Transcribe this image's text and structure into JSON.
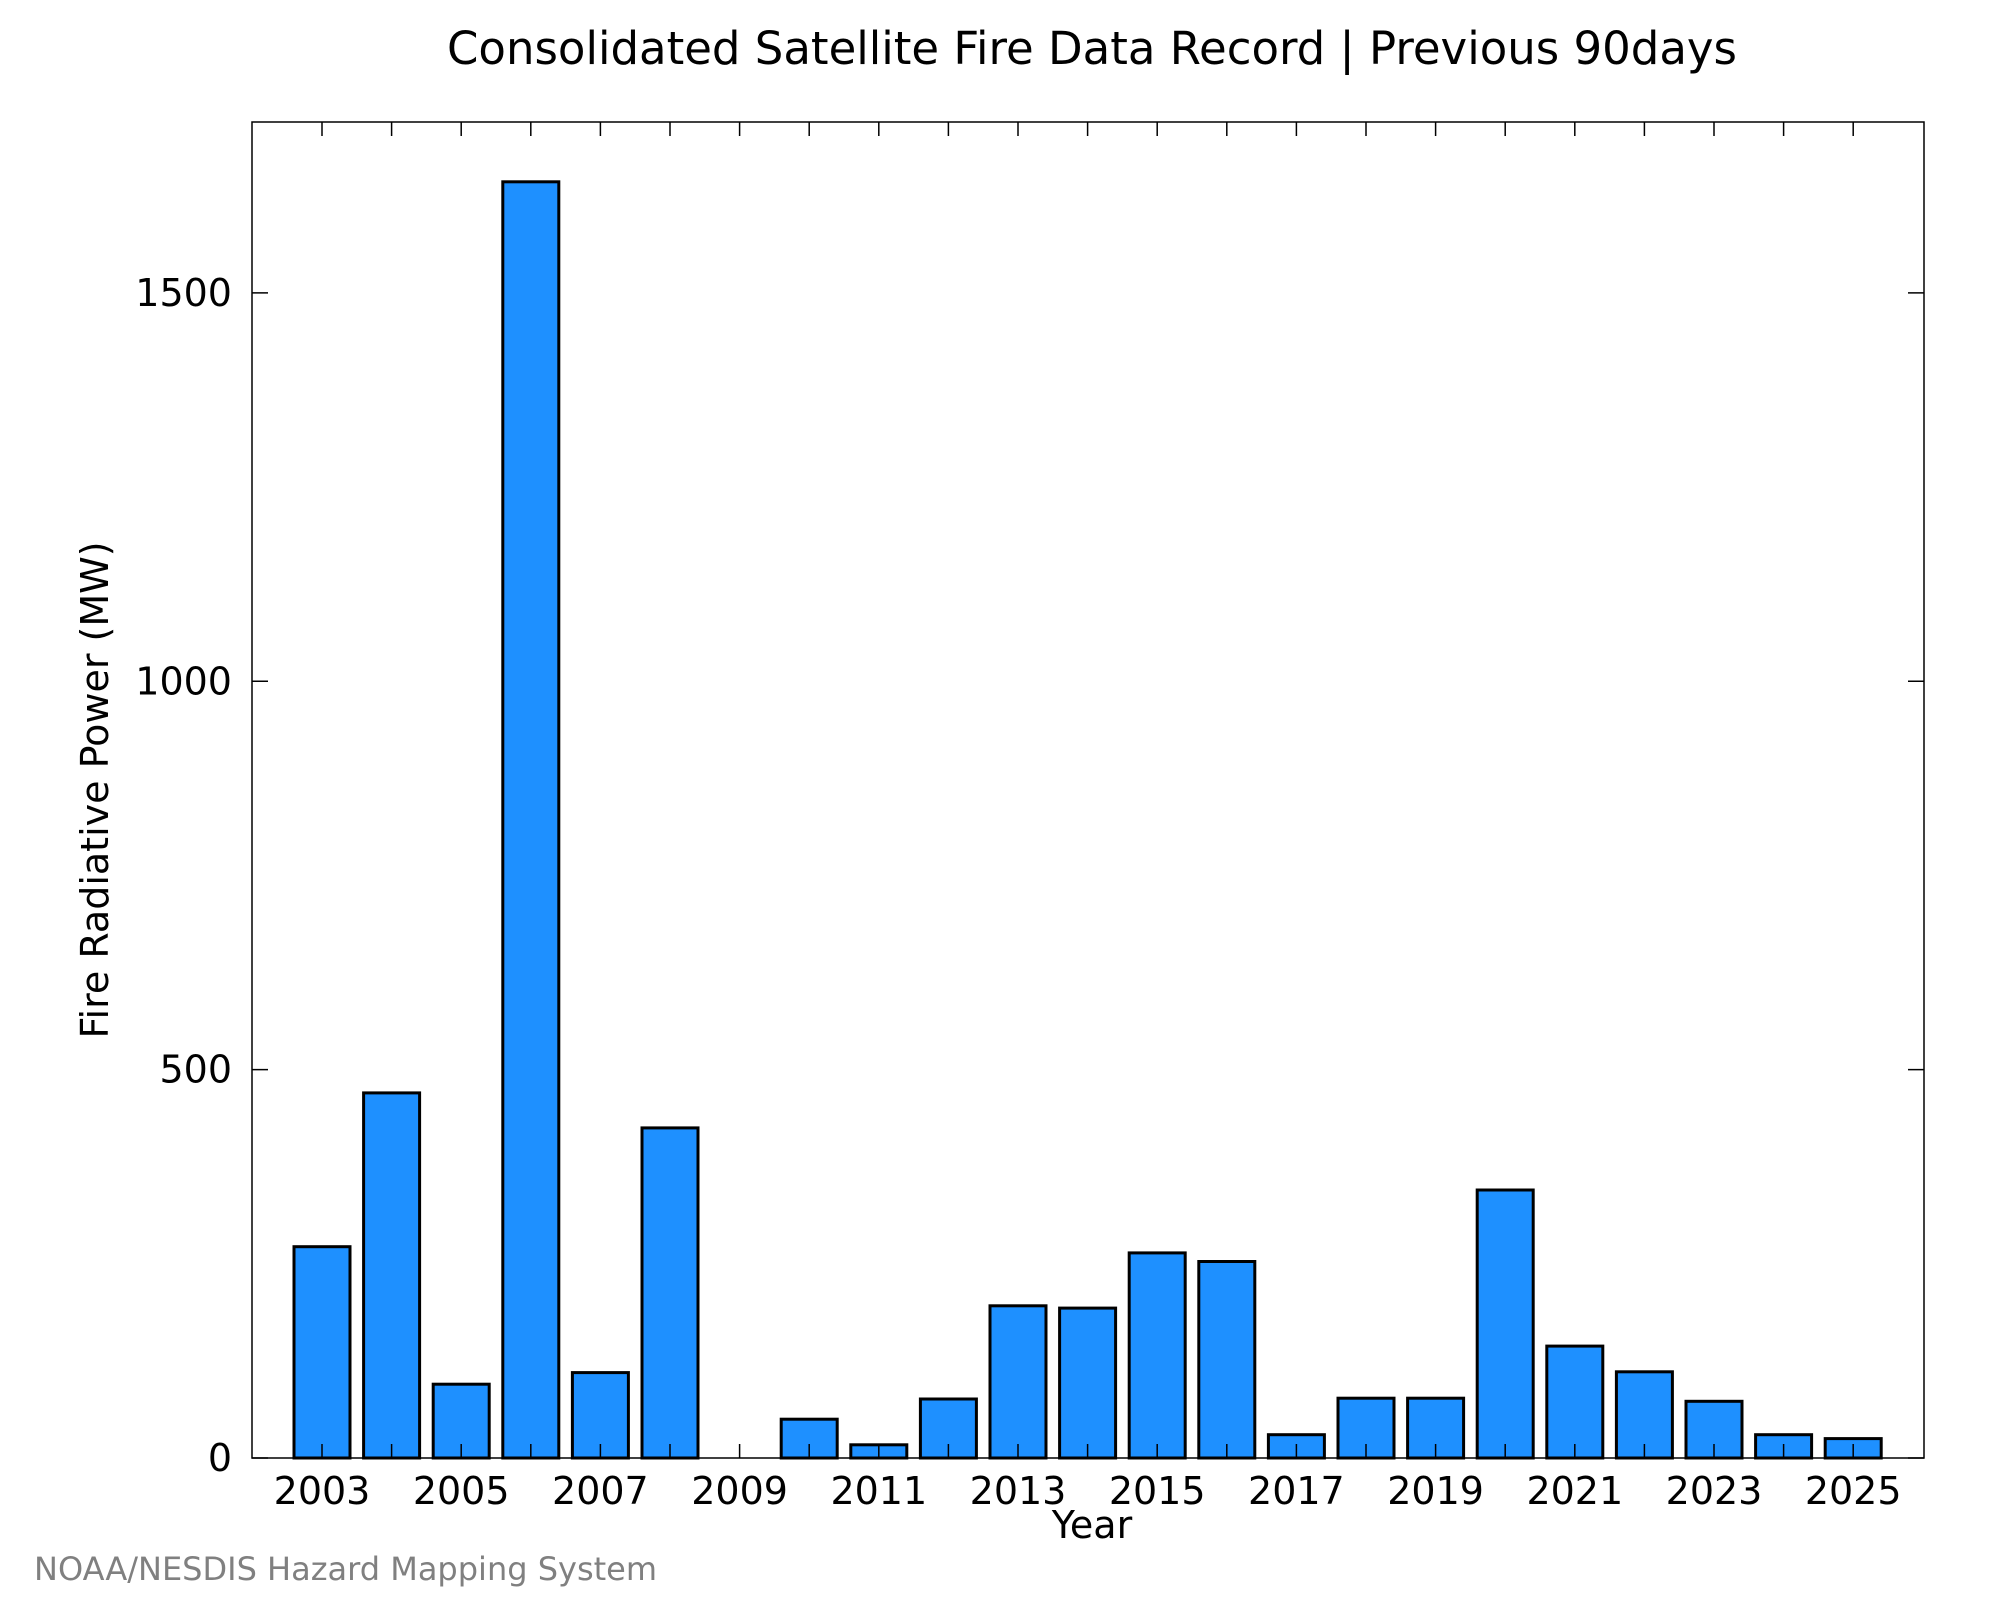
{
  "chart_data": {
    "type": "bar",
    "title": "Consolidated Satellite Fire Data Record | Previous 90days",
    "xlabel": "Year",
    "ylabel": "Fire Radiative Power (MW)",
    "categories": [
      "2003",
      "2004",
      "2005",
      "2006",
      "2007",
      "2008",
      "2009",
      "2010",
      "2011",
      "2012",
      "2013",
      "2014",
      "2015",
      "2016",
      "2017",
      "2018",
      "2019",
      "2020",
      "2021",
      "2022",
      "2023",
      "2024",
      "2025"
    ],
    "values": [
      272,
      470,
      95,
      1643,
      110,
      425,
      0,
      50,
      17,
      76,
      196,
      193,
      264,
      253,
      30,
      77,
      77,
      345,
      144,
      111,
      73,
      30,
      25
    ],
    "x_tick_labels": [
      "2003",
      "2005",
      "2007",
      "2009",
      "2011",
      "2013",
      "2015",
      "2017",
      "2019",
      "2021",
      "2023",
      "2025"
    ],
    "y_tick_values": [
      0,
      500,
      1000,
      1500
    ],
    "y_tick_labels": [
      "0",
      "500",
      "1000",
      "1500"
    ],
    "ylim": [
      0,
      1720
    ],
    "grid": false,
    "legend": "none",
    "bar_color": "#1E90FF",
    "bar_edge_color": "#000000"
  },
  "credit": {
    "text": "NOAA/NESDIS Hazard Mapping System",
    "color": "#808080"
  }
}
